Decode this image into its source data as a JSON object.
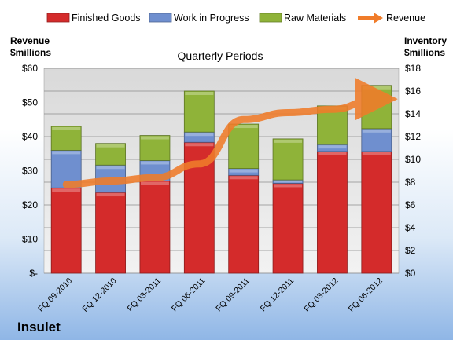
{
  "chart_data": {
    "type": "bar",
    "subtitle": "Quarterly Periods",
    "company": "Insulet",
    "categories": [
      "FQ 09-2010",
      "FQ 12-2010",
      "FQ 03-2011",
      "FQ 06-2011",
      "FQ 09-2011",
      "FQ 12-2011",
      "FQ 03-2012",
      "FQ 06-2012"
    ],
    "series": [
      {
        "name": "Finished Goods",
        "color": "#d42b2b",
        "values": [
          7.5,
          7.1,
          8.1,
          11.5,
          8.6,
          7.9,
          10.7,
          10.7
        ]
      },
      {
        "name": "Work in Progress",
        "color": "#6f8fcf",
        "values": [
          3.3,
          2.4,
          1.8,
          0.9,
          0.6,
          0.3,
          0.6,
          2.0
        ]
      },
      {
        "name": "Raw Materials",
        "color": "#8fb339",
        "values": [
          2.1,
          1.9,
          2.2,
          3.6,
          3.9,
          3.6,
          3.4,
          3.8
        ]
      }
    ],
    "line_series": {
      "name": "Revenue",
      "color": "#f07c2a",
      "values": [
        26,
        27,
        28,
        32,
        45,
        47,
        48,
        51
      ]
    },
    "left_axis": {
      "label_line1": "Revenue",
      "label_line2": "$millions",
      "ylim": [
        0,
        60
      ],
      "ticks": [
        "$-",
        "$10",
        "$20",
        "$30",
        "$40",
        "$50",
        "$60"
      ]
    },
    "right_axis": {
      "label_line1": "Inventory",
      "label_line2": "$millions",
      "ylim": [
        0,
        18
      ],
      "ticks": [
        "$0",
        "$2",
        "$4",
        "$6",
        "$8",
        "$10",
        "$12",
        "$14",
        "$16",
        "$18"
      ]
    },
    "grid": true,
    "legend_position": "top"
  }
}
